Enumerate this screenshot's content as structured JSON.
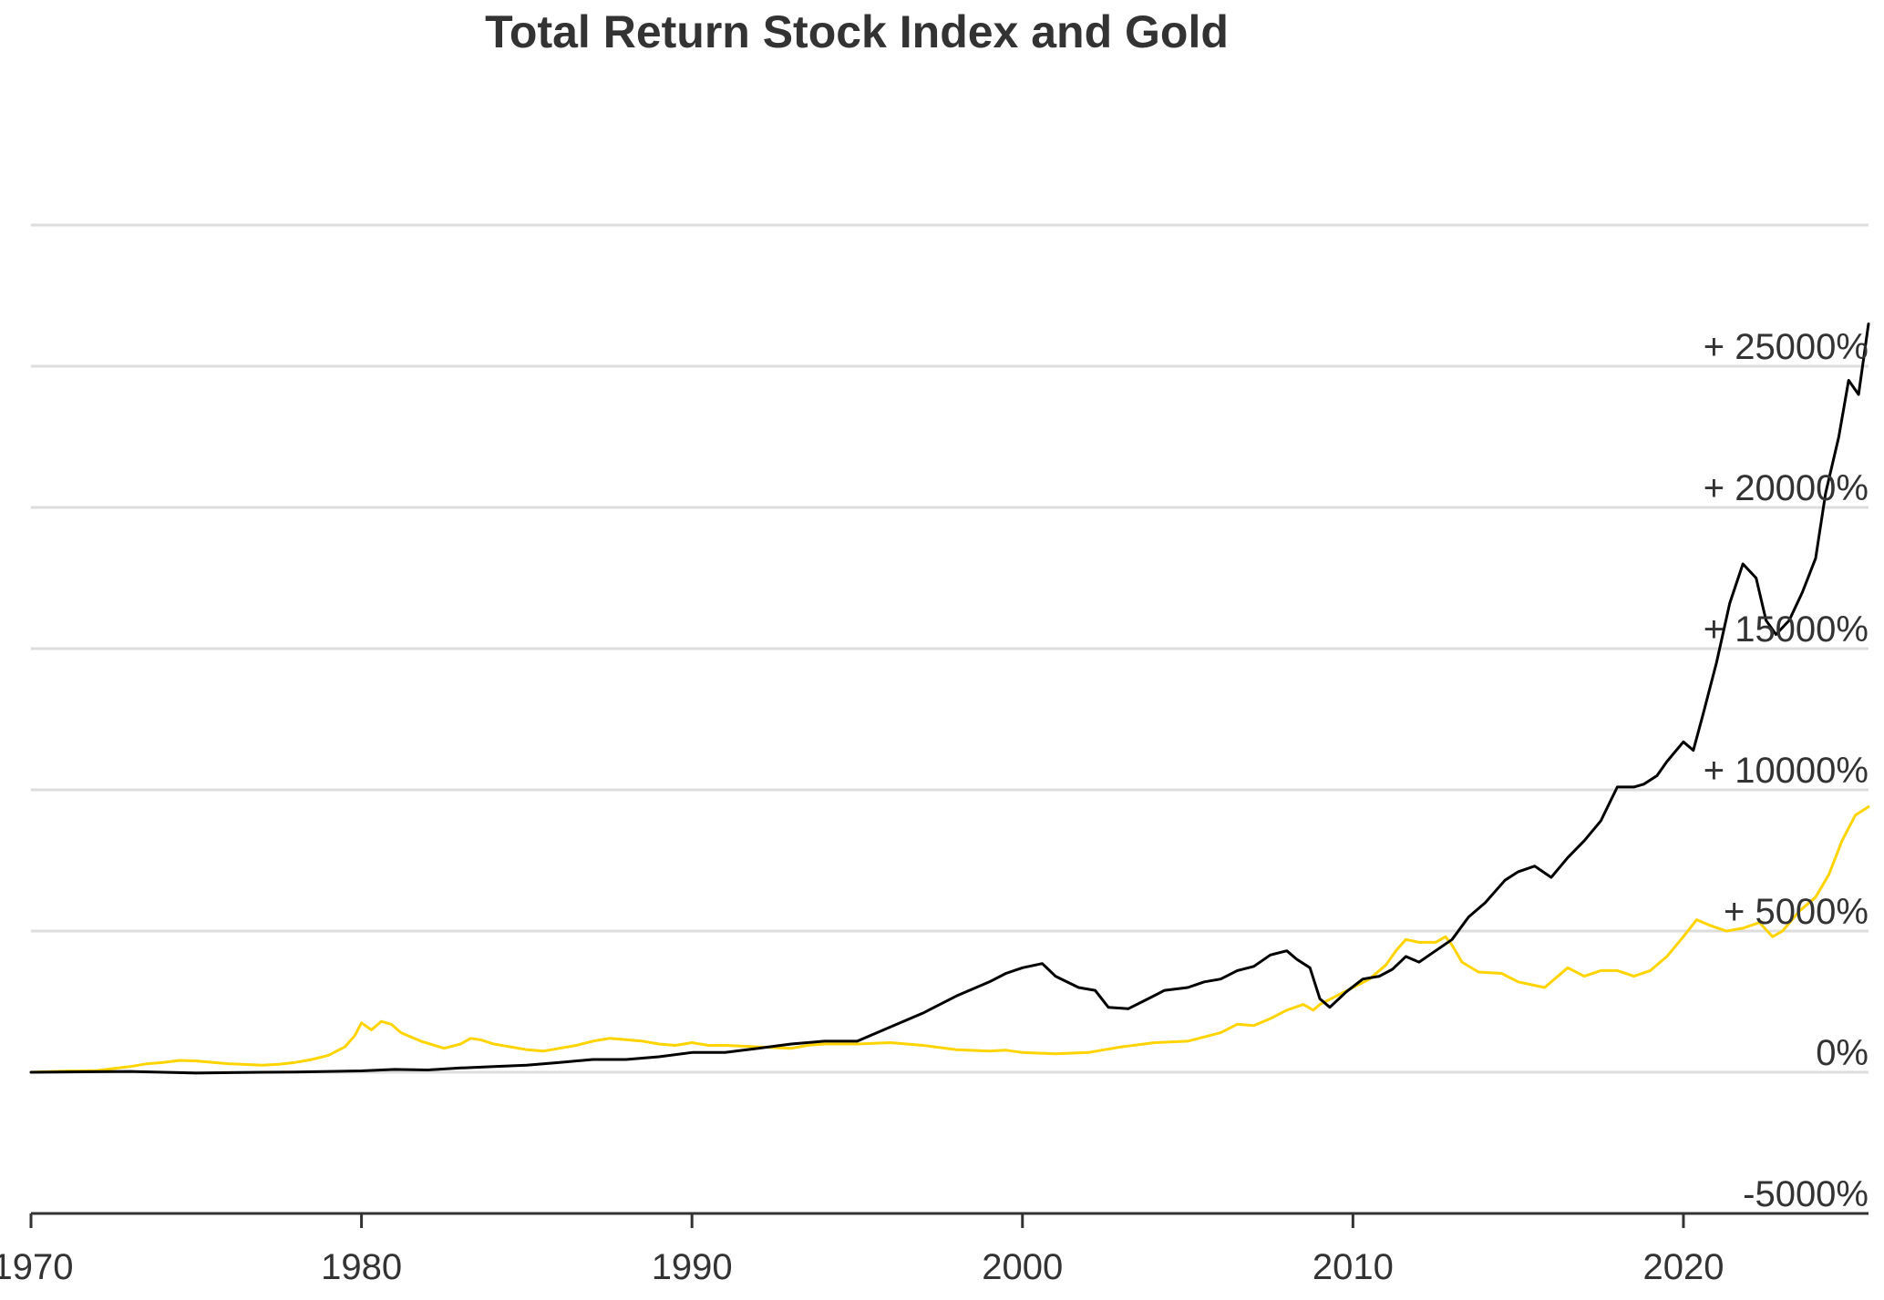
{
  "chart_data": {
    "type": "line",
    "title": "Total Return Stock Index and Gold",
    "xlabel": "",
    "ylabel": "",
    "xlim": [
      1970,
      2025.6
    ],
    "ylim": [
      -5000,
      30000
    ],
    "x_ticks": [
      {
        "value": 1970,
        "label": "1970"
      },
      {
        "value": 1980,
        "label": "1980"
      },
      {
        "value": 1990,
        "label": "1990"
      },
      {
        "value": 2000,
        "label": "2000"
      },
      {
        "value": 2010,
        "label": "2010"
      },
      {
        "value": 2020,
        "label": "2020"
      }
    ],
    "y_ticks": [
      {
        "value": -5000,
        "label": "-5000%"
      },
      {
        "value": 0,
        "label": "0%"
      },
      {
        "value": 5000,
        "label": "+ 5000%"
      },
      {
        "value": 10000,
        "label": "+ 10000%"
      },
      {
        "value": 15000,
        "label": "+ 15000%"
      },
      {
        "value": 20000,
        "label": "+ 20000%"
      },
      {
        "value": 25000,
        "label": "+ 25000%"
      },
      {
        "value": 30000,
        "label": ""
      }
    ],
    "grid": "horizontal",
    "legend": "none",
    "series": [
      {
        "color": "#FFD400",
        "points": [
          [
            1970,
            0
          ],
          [
            1971,
            40
          ],
          [
            1972,
            60
          ],
          [
            1973,
            200
          ],
          [
            1973.5,
            300
          ],
          [
            1974,
            350
          ],
          [
            1974.5,
            420
          ],
          [
            1975,
            400
          ],
          [
            1976,
            300
          ],
          [
            1977,
            250
          ],
          [
            1977.5,
            280
          ],
          [
            1978,
            350
          ],
          [
            1978.5,
            450
          ],
          [
            1979,
            600
          ],
          [
            1979.5,
            900
          ],
          [
            1979.8,
            1300
          ],
          [
            1980,
            1750
          ],
          [
            1980.3,
            1500
          ],
          [
            1980.6,
            1800
          ],
          [
            1980.9,
            1700
          ],
          [
            1981.2,
            1400
          ],
          [
            1981.8,
            1100
          ],
          [
            1982.5,
            850
          ],
          [
            1983,
            1000
          ],
          [
            1983.3,
            1200
          ],
          [
            1983.6,
            1150
          ],
          [
            1984,
            1000
          ],
          [
            1985,
            800
          ],
          [
            1985.5,
            750
          ],
          [
            1986,
            850
          ],
          [
            1986.5,
            950
          ],
          [
            1987,
            1100
          ],
          [
            1987.5,
            1200
          ],
          [
            1988,
            1150
          ],
          [
            1988.5,
            1100
          ],
          [
            1989,
            1000
          ],
          [
            1989.5,
            950
          ],
          [
            1990,
            1050
          ],
          [
            1990.5,
            950
          ],
          [
            1991,
            950
          ],
          [
            1992,
            900
          ],
          [
            1993,
            850
          ],
          [
            1993.5,
            950
          ],
          [
            1994,
            1000
          ],
          [
            1995,
            1000
          ],
          [
            1996,
            1050
          ],
          [
            1997,
            950
          ],
          [
            1998,
            800
          ],
          [
            1999,
            750
          ],
          [
            1999.5,
            780
          ],
          [
            2000,
            700
          ],
          [
            2001,
            650
          ],
          [
            2002,
            700
          ],
          [
            2002.5,
            800
          ],
          [
            2003,
            900
          ],
          [
            2004,
            1050
          ],
          [
            2005,
            1100
          ],
          [
            2006,
            1400
          ],
          [
            2006.5,
            1700
          ],
          [
            2007,
            1650
          ],
          [
            2007.5,
            1900
          ],
          [
            2008,
            2200
          ],
          [
            2008.5,
            2400
          ],
          [
            2008.8,
            2200
          ],
          [
            2009,
            2400
          ],
          [
            2009.5,
            2700
          ],
          [
            2010,
            3000
          ],
          [
            2010.5,
            3300
          ],
          [
            2011,
            3800
          ],
          [
            2011.3,
            4300
          ],
          [
            2011.6,
            4700
          ],
          [
            2012,
            4600
          ],
          [
            2012.5,
            4600
          ],
          [
            2012.8,
            4800
          ],
          [
            2013,
            4500
          ],
          [
            2013.3,
            3900
          ],
          [
            2013.8,
            3550
          ],
          [
            2014.5,
            3500
          ],
          [
            2015,
            3200
          ],
          [
            2015.8,
            3000
          ],
          [
            2016.5,
            3700
          ],
          [
            2017,
            3400
          ],
          [
            2017.5,
            3600
          ],
          [
            2018,
            3600
          ],
          [
            2018.5,
            3400
          ],
          [
            2019,
            3600
          ],
          [
            2019.5,
            4100
          ],
          [
            2020,
            4800
          ],
          [
            2020.4,
            5400
          ],
          [
            2020.8,
            5200
          ],
          [
            2021.3,
            5000
          ],
          [
            2021.8,
            5100
          ],
          [
            2022.3,
            5300
          ],
          [
            2022.7,
            4800
          ],
          [
            2023,
            5000
          ],
          [
            2023.5,
            5700
          ],
          [
            2024,
            6200
          ],
          [
            2024.4,
            7000
          ],
          [
            2024.8,
            8200
          ],
          [
            2025.2,
            9100
          ],
          [
            2025.6,
            9400
          ]
        ]
      },
      {
        "color": "#000000",
        "points": [
          [
            1970,
            0
          ],
          [
            1972,
            20
          ],
          [
            1973,
            30
          ],
          [
            1975,
            -30
          ],
          [
            1977,
            0
          ],
          [
            1978,
            10
          ],
          [
            1980,
            50
          ],
          [
            1981,
            100
          ],
          [
            1982,
            80
          ],
          [
            1983,
            150
          ],
          [
            1984,
            200
          ],
          [
            1985,
            250
          ],
          [
            1986,
            350
          ],
          [
            1987,
            450
          ],
          [
            1988,
            450
          ],
          [
            1989,
            550
          ],
          [
            1990,
            700
          ],
          [
            1991,
            700
          ],
          [
            1992,
            850
          ],
          [
            1993,
            1000
          ],
          [
            1994,
            1100
          ],
          [
            1995,
            1100
          ],
          [
            1996,
            1600
          ],
          [
            1997,
            2100
          ],
          [
            1998,
            2700
          ],
          [
            1999,
            3200
          ],
          [
            1999.5,
            3500
          ],
          [
            2000,
            3700
          ],
          [
            2000.6,
            3850
          ],
          [
            2001,
            3400
          ],
          [
            2001.7,
            3000
          ],
          [
            2002.2,
            2900
          ],
          [
            2002.6,
            2300
          ],
          [
            2003.2,
            2250
          ],
          [
            2003.8,
            2600
          ],
          [
            2004.3,
            2900
          ],
          [
            2005,
            3000
          ],
          [
            2005.5,
            3200
          ],
          [
            2006,
            3300
          ],
          [
            2006.5,
            3600
          ],
          [
            2007,
            3750
          ],
          [
            2007.5,
            4150
          ],
          [
            2008,
            4300
          ],
          [
            2008.3,
            4000
          ],
          [
            2008.7,
            3700
          ],
          [
            2009,
            2600
          ],
          [
            2009.3,
            2300
          ],
          [
            2009.8,
            2850
          ],
          [
            2010.3,
            3300
          ],
          [
            2010.8,
            3400
          ],
          [
            2011.2,
            3650
          ],
          [
            2011.6,
            4100
          ],
          [
            2012,
            3900
          ],
          [
            2012.5,
            4300
          ],
          [
            2013,
            4700
          ],
          [
            2013.5,
            5500
          ],
          [
            2014,
            6000
          ],
          [
            2014.6,
            6800
          ],
          [
            2015,
            7100
          ],
          [
            2015.5,
            7300
          ],
          [
            2016,
            6900
          ],
          [
            2016.5,
            7600
          ],
          [
            2017,
            8200
          ],
          [
            2017.5,
            8900
          ],
          [
            2018,
            10100
          ],
          [
            2018.5,
            10100
          ],
          [
            2018.8,
            10200
          ],
          [
            2019.2,
            10500
          ],
          [
            2019.5,
            11000
          ],
          [
            2020,
            11700
          ],
          [
            2020.3,
            11400
          ],
          [
            2020.6,
            12700
          ],
          [
            2021,
            14500
          ],
          [
            2021.4,
            16600
          ],
          [
            2021.8,
            18000
          ],
          [
            2022.2,
            17500
          ],
          [
            2022.5,
            16000
          ],
          [
            2022.8,
            15500
          ],
          [
            2023.2,
            16000
          ],
          [
            2023.6,
            17000
          ],
          [
            2024,
            18200
          ],
          [
            2024.3,
            20500
          ],
          [
            2024.7,
            22500
          ],
          [
            2025,
            24500
          ],
          [
            2025.3,
            24000
          ],
          [
            2025.6,
            26500
          ]
        ]
      }
    ]
  }
}
